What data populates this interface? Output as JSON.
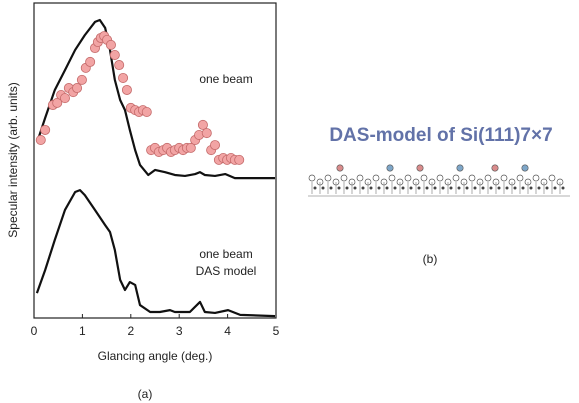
{
  "chart_data": {
    "type": "line",
    "xlabel": "Glancing angle (deg.)",
    "ylabel": "Specular intensity (arb. units)",
    "xlim": [
      0,
      5
    ],
    "xticks": [
      0,
      1,
      2,
      3,
      4,
      5
    ],
    "ylim": [
      0,
      100
    ],
    "annotations": [
      "one beam",
      "one beam",
      "DAS model"
    ],
    "panel_labels": [
      "(a)",
      "(b)"
    ],
    "model_title": "DAS-model of Si(111)7×7",
    "series": [
      {
        "type": "scatter",
        "color": "#f2a4a4",
        "x": [
          0.14,
          0.23,
          0.39,
          0.48,
          0.56,
          0.64,
          0.72,
          0.81,
          0.89,
          0.99,
          1.07,
          1.16,
          1.26,
          1.32,
          1.38,
          1.45,
          1.51,
          1.59,
          1.67,
          1.76,
          1.84,
          1.92,
          2.0,
          2.09,
          2.17,
          2.25,
          2.33,
          2.42,
          2.5,
          2.58,
          2.67,
          2.75,
          2.83,
          2.91,
          3.0,
          3.08,
          3.16,
          3.24,
          3.33,
          3.41,
          3.49,
          3.57,
          3.66,
          3.74,
          3.82,
          3.91,
          3.99,
          4.07,
          4.15,
          4.24
        ],
        "values": [
          56.5,
          59.7,
          67.6,
          68.3,
          70.8,
          69.8,
          73.0,
          71.7,
          73.0,
          75.6,
          79.4,
          81.3,
          85.7,
          87.6,
          88.9,
          89.5,
          88.3,
          86.7,
          83.5,
          80.3,
          76.2,
          72.4,
          66.7,
          66.0,
          65.4,
          66.0,
          65.4,
          53.3,
          54.0,
          52.7,
          53.3,
          54.0,
          52.7,
          53.3,
          54.0,
          53.3,
          54.0,
          54.0,
          56.5,
          58.1,
          61.3,
          58.7,
          53.3,
          54.9,
          50.2,
          50.8,
          50.2,
          50.8,
          50.2,
          50.2
        ]
      },
      {
        "type": "line",
        "color": "#111111",
        "x": [
          0.08,
          0.23,
          0.43,
          0.64,
          0.85,
          1.05,
          1.26,
          1.36,
          1.47,
          1.57,
          1.67,
          1.78,
          1.88,
          1.98,
          2.09,
          2.19,
          2.36,
          2.5,
          2.71,
          2.91,
          3.12,
          3.33,
          3.43,
          3.53,
          3.74,
          3.95,
          4.15,
          4.46,
          4.98
        ],
        "values": [
          56.5,
          63.5,
          72.4,
          78.7,
          85.1,
          89.8,
          94.0,
          94.6,
          92.1,
          85.1,
          75.6,
          69.2,
          66.0,
          59.7,
          53.3,
          48.6,
          45.4,
          47.0,
          46.3,
          45.4,
          45.1,
          45.7,
          46.3,
          45.4,
          45.1,
          45.7,
          44.4,
          44.4,
          44.4
        ]
      },
      {
        "type": "line",
        "color": "#111111",
        "x": [
          0.06,
          0.23,
          0.43,
          0.64,
          0.85,
          0.95,
          1.05,
          1.26,
          1.47,
          1.57,
          1.67,
          1.78,
          1.88,
          1.98,
          2.09,
          2.19,
          2.4,
          2.6,
          2.81,
          2.91,
          3.22,
          3.43,
          3.53,
          3.74,
          4.01,
          4.26,
          4.98
        ],
        "values": [
          7.9,
          15.2,
          24.8,
          34.3,
          40.0,
          40.6,
          39.0,
          34.3,
          29.5,
          27.3,
          21.6,
          12.1,
          8.9,
          11.4,
          10.5,
          4.1,
          1.9,
          1.9,
          2.5,
          1.9,
          1.9,
          5.1,
          1.9,
          1.6,
          2.5,
          1.0,
          0.6
        ]
      }
    ]
  }
}
